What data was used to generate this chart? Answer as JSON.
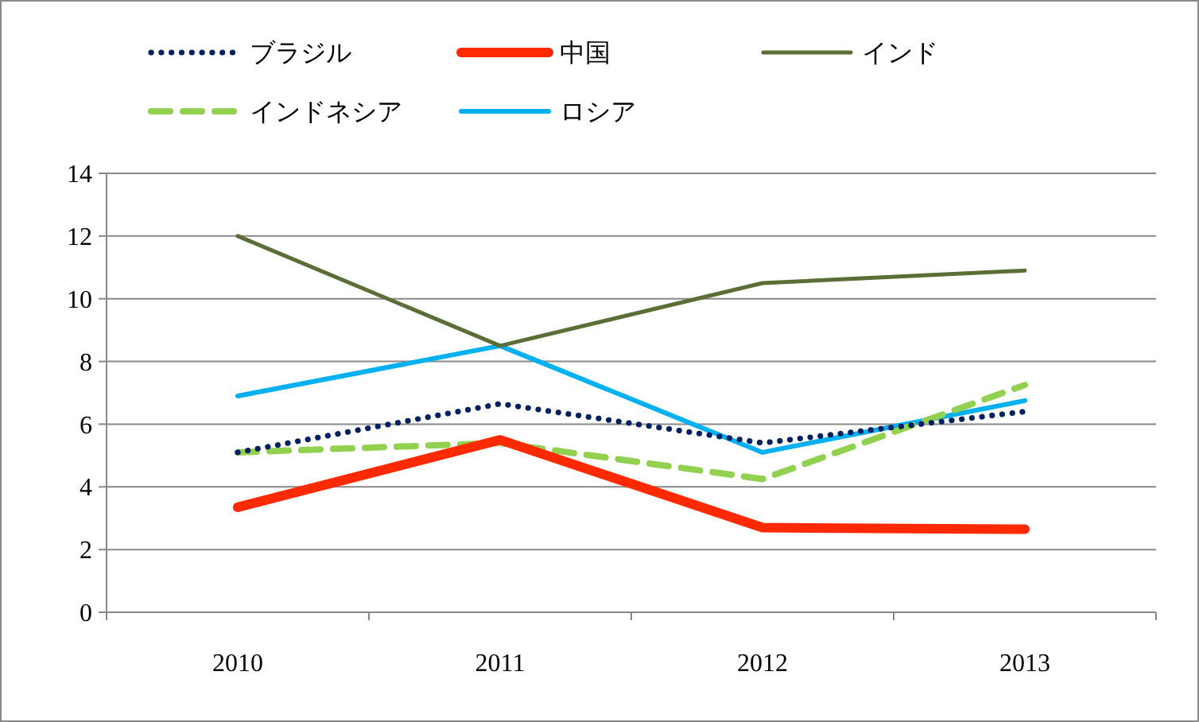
{
  "chart_data": {
    "type": "line",
    "categories": [
      "2010",
      "2011",
      "2012",
      "2013"
    ],
    "series": [
      {
        "name": "ブラジル",
        "color": "#002060",
        "line_style": "dotted",
        "values": [
          5.1,
          6.65,
          5.4,
          6.4
        ]
      },
      {
        "name": "中国",
        "color": "#ff2a00",
        "line_style": "solid",
        "values": [
          3.35,
          5.5,
          2.7,
          2.65
        ]
      },
      {
        "name": "インド",
        "color": "#5a6e35",
        "line_style": "solid",
        "values": [
          12.0,
          8.5,
          10.5,
          10.9
        ]
      },
      {
        "name": "インドネシア",
        "color": "#92d050",
        "line_style": "dashed",
        "values": [
          5.1,
          5.4,
          4.25,
          7.25
        ]
      },
      {
        "name": "ロシア",
        "color": "#00b0f0",
        "line_style": "solid",
        "values": [
          6.9,
          8.5,
          5.1,
          6.75
        ]
      }
    ],
    "ylim": [
      0,
      14
    ],
    "yticks": [
      0,
      2,
      4,
      6,
      8,
      10,
      12,
      14
    ],
    "grid": "y",
    "legend": "top",
    "marker": "none"
  }
}
